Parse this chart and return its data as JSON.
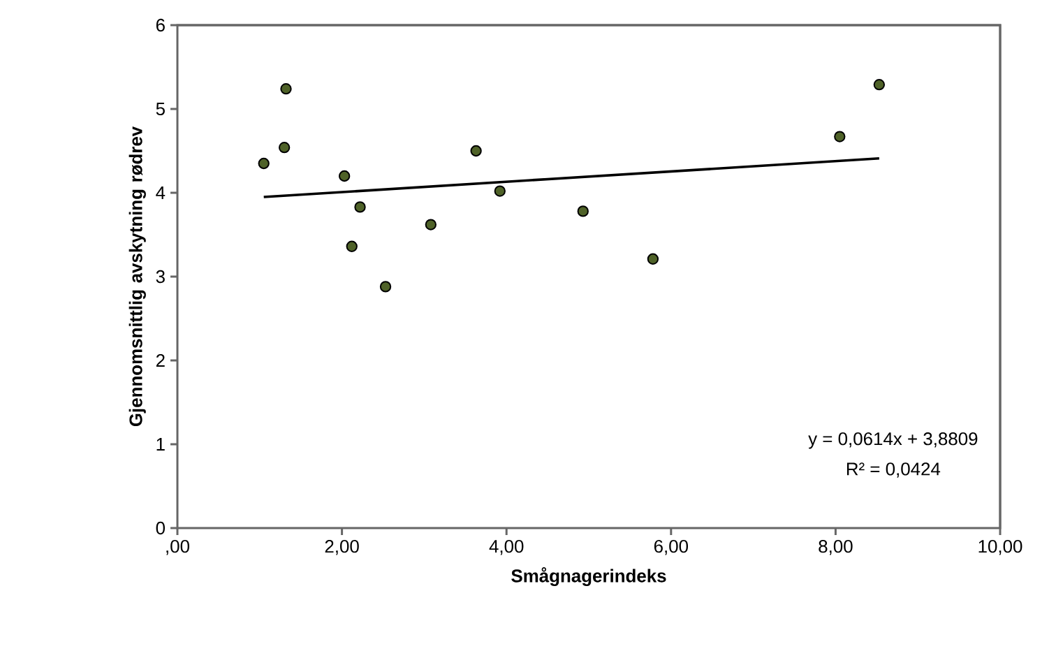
{
  "chart_data": {
    "type": "scatter",
    "xlabel": "Smågnagerindeks",
    "ylabel": "Gjennomsnittlig avskytning rødrev",
    "xlim": [
      0,
      10
    ],
    "ylim": [
      0,
      6
    ],
    "xticks": [
      {
        "value": 0,
        "label": ",00"
      },
      {
        "value": 2,
        "label": "2,00"
      },
      {
        "value": 4,
        "label": "4,00"
      },
      {
        "value": 6,
        "label": "6,00"
      },
      {
        "value": 8,
        "label": "8,00"
      },
      {
        "value": 10,
        "label": "10,00"
      }
    ],
    "yticks": [
      0,
      1,
      2,
      3,
      4,
      5,
      6
    ],
    "grid": false,
    "series": [
      {
        "color": "#4f6228",
        "marker": "circle",
        "x": [
          1.05,
          1.3,
          1.32,
          2.03,
          2.12,
          2.22,
          2.53,
          3.08,
          3.63,
          3.92,
          4.93,
          5.78,
          8.05,
          8.53
        ],
        "values": [
          4.35,
          4.54,
          5.24,
          4.2,
          3.36,
          3.83,
          2.88,
          3.62,
          4.5,
          4.02,
          3.78,
          3.21,
          4.67,
          5.29
        ]
      },
      {
        "type": "line",
        "color": "#000000",
        "marker": "none",
        "x": [
          1.05,
          8.53
        ],
        "values": [
          3.95,
          4.41
        ]
      }
    ],
    "annotations": [
      "y = 0,0614x + 3,8809",
      "R² = 0,0424"
    ]
  }
}
